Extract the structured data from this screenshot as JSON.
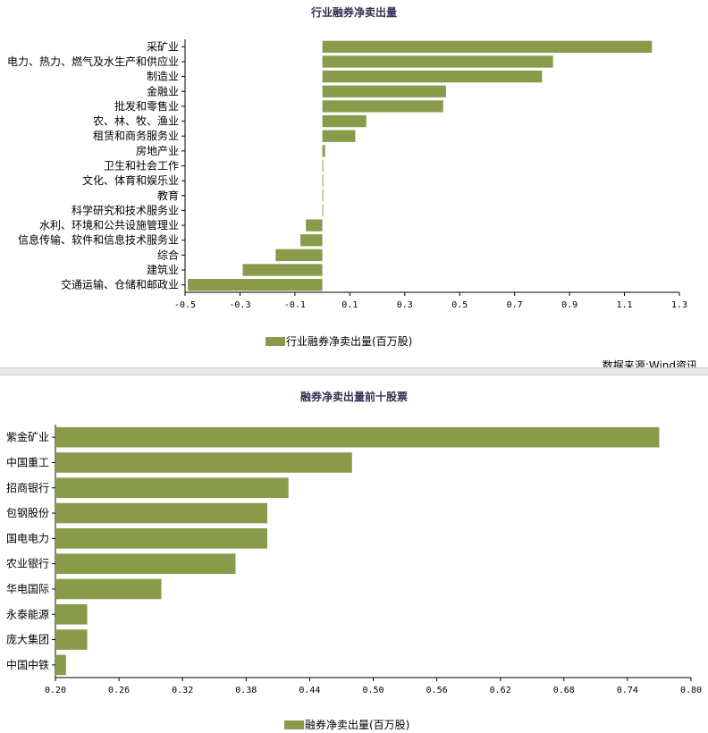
{
  "source_note": "数据来源:Wind资讯",
  "chart_data": [
    {
      "type": "bar",
      "orientation": "horizontal",
      "title": "行业融券净卖出量",
      "categories": [
        "采矿业",
        "电力、热力、燃气及水生产和供应业",
        "制造业",
        "金融业",
        "批发和零售业",
        "农、林、牧、渔业",
        "租赁和商务服务业",
        "房地产业",
        "卫生和社会工作",
        "文化、体育和娱乐业",
        "教育",
        "科学研究和技术服务业",
        "水利、环境和公共设施管理业",
        "信息传输、软件和信息技术服务业",
        "综合",
        "建筑业",
        "交通运输、仓储和邮政业"
      ],
      "series": [
        {
          "name": "行业融券净卖出量(百万股)",
          "values": [
            1.2,
            0.84,
            0.8,
            0.45,
            0.44,
            0.16,
            0.12,
            0.01,
            0.003,
            0.003,
            0.003,
            0.003,
            -0.06,
            -0.08,
            -0.17,
            -0.29,
            -0.49
          ]
        }
      ],
      "xlim": [
        -0.5,
        1.3
      ],
      "xticks": [
        "-0.5",
        "-0.3",
        "-0.1",
        "0.1",
        "0.3",
        "0.5",
        "0.7",
        "0.9",
        "1.1",
        "1.3"
      ],
      "legend_position": "bottom",
      "color": "#8a9a4b"
    },
    {
      "type": "bar",
      "orientation": "horizontal",
      "title": "融券净卖出量前十股票",
      "categories": [
        "紫金矿业",
        "中国重工",
        "招商银行",
        "包钢股份",
        "国电电力",
        "农业银行",
        "华电国际",
        "永泰能源",
        "庞大集团",
        "中国中铁"
      ],
      "series": [
        {
          "name": "融券净卖出量(百万股)",
          "values": [
            0.77,
            0.48,
            0.42,
            0.4,
            0.4,
            0.37,
            0.3,
            0.23,
            0.23,
            0.21
          ]
        }
      ],
      "xlim": [
        0.2,
        0.8
      ],
      "xticks": [
        "0.20",
        "0.26",
        "0.32",
        "0.38",
        "0.44",
        "0.50",
        "0.56",
        "0.62",
        "0.68",
        "0.74",
        "0.80"
      ],
      "legend_position": "bottom",
      "color": "#8a9a4b"
    }
  ]
}
